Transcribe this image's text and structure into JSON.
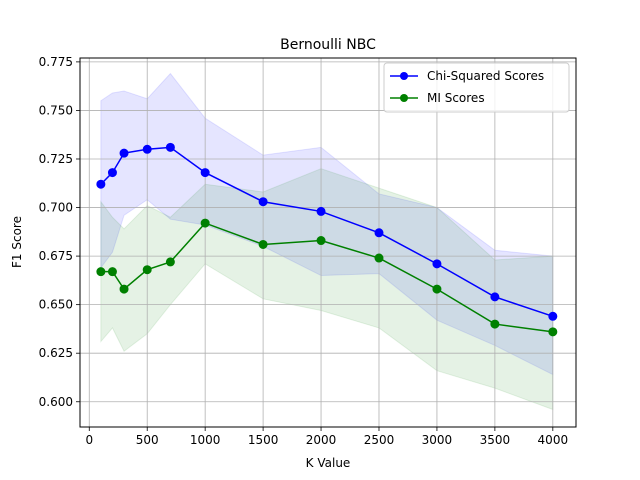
{
  "chart_data": {
    "type": "line",
    "title": "Bernoulli NBC",
    "xlabel": "K Value",
    "ylabel": "F1 Score",
    "xlim": [
      -80,
      4200
    ],
    "ylim": [
      0.587,
      0.777
    ],
    "xticks": [
      0,
      500,
      1000,
      1500,
      2000,
      2500,
      3000,
      3500,
      4000
    ],
    "yticks": [
      0.6,
      0.625,
      0.65,
      0.675,
      0.7,
      0.725,
      0.75,
      0.775
    ],
    "ytick_labels": [
      "0.600",
      "0.625",
      "0.650",
      "0.675",
      "0.700",
      "0.725",
      "0.750",
      "0.775"
    ],
    "grid": true,
    "legend_position": "top-right",
    "x": [
      100,
      200,
      300,
      500,
      700,
      1000,
      1500,
      2000,
      2500,
      3000,
      3500,
      4000
    ],
    "series": [
      {
        "name": "Chi-Squared Scores",
        "color": "#0000ff",
        "values": [
          0.712,
          0.718,
          0.728,
          0.73,
          0.731,
          0.718,
          0.703,
          0.698,
          0.687,
          0.671,
          0.654,
          0.644
        ],
        "upper": [
          0.755,
          0.759,
          0.76,
          0.756,
          0.769,
          0.746,
          0.727,
          0.731,
          0.707,
          0.7,
          0.678,
          0.675
        ],
        "lower": [
          0.669,
          0.677,
          0.696,
          0.704,
          0.694,
          0.691,
          0.68,
          0.665,
          0.666,
          0.642,
          0.629,
          0.614
        ]
      },
      {
        "name": "MI Scores",
        "color": "#008000",
        "values": [
          0.667,
          0.667,
          0.658,
          0.668,
          0.672,
          0.692,
          0.681,
          0.683,
          0.674,
          0.658,
          0.64,
          0.636
        ],
        "upper": [
          0.703,
          0.695,
          0.689,
          0.701,
          0.695,
          0.712,
          0.708,
          0.72,
          0.71,
          0.7,
          0.673,
          0.675
        ],
        "lower": [
          0.631,
          0.638,
          0.626,
          0.635,
          0.65,
          0.671,
          0.653,
          0.647,
          0.638,
          0.616,
          0.607,
          0.596
        ]
      }
    ]
  }
}
